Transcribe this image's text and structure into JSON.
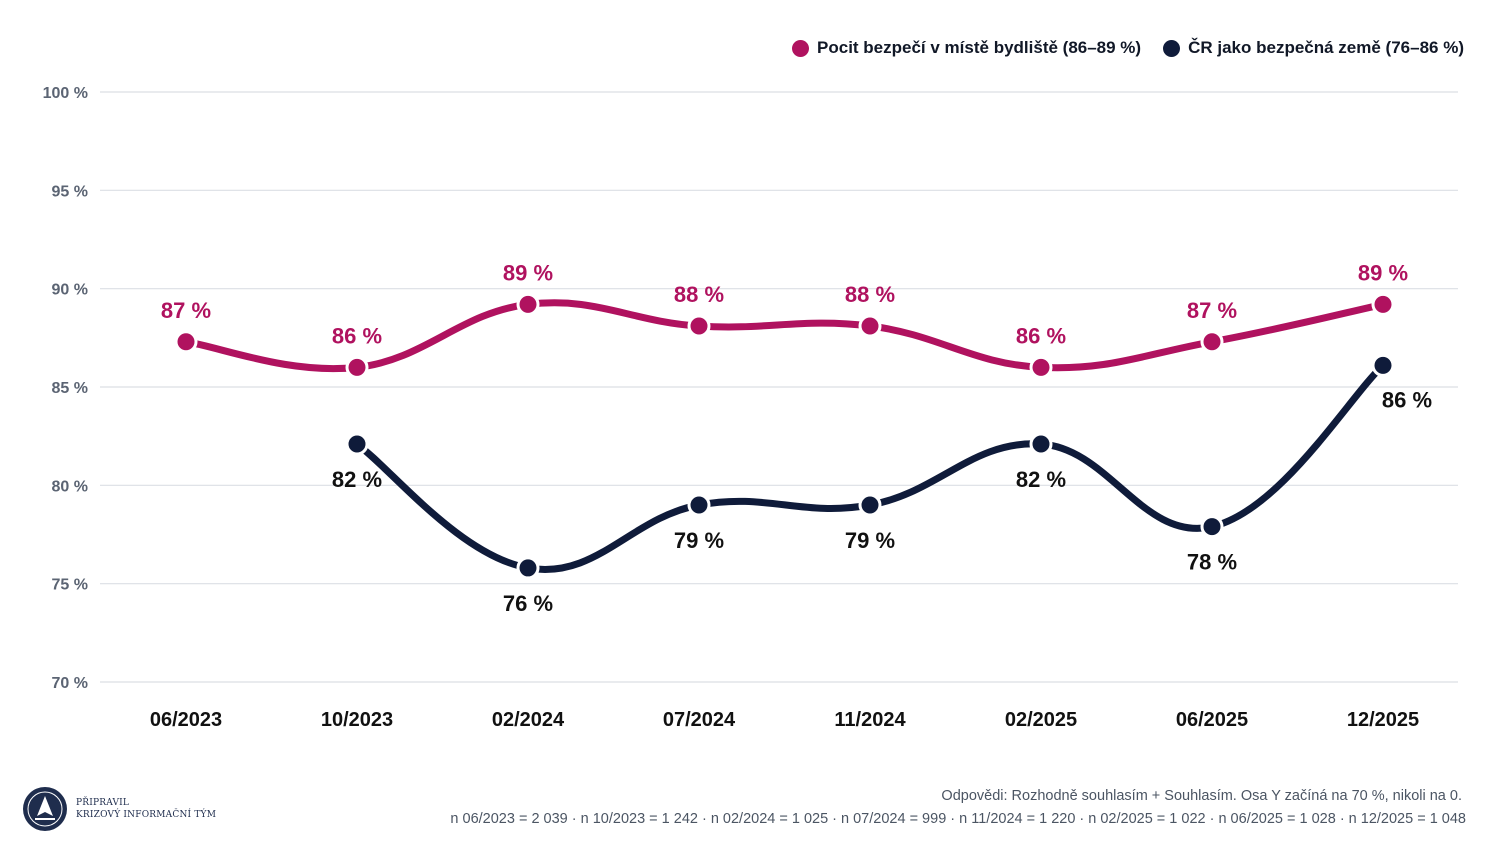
{
  "chart_data": {
    "type": "line",
    "categories": [
      "06/2023",
      "10/2023",
      "02/2024",
      "07/2024",
      "11/2024",
      "02/2025",
      "06/2025",
      "12/2025"
    ],
    "ylim": [
      70,
      100
    ],
    "yticks": [
      70,
      75,
      80,
      85,
      90,
      95,
      100
    ],
    "ytick_labels": [
      "70 %",
      "75 %",
      "80 %",
      "85 %",
      "90 %",
      "95 %",
      "100 %"
    ],
    "grid": true,
    "legend_position": "top-right",
    "series": [
      {
        "name": "Pocit bezpečí v místě bydliště (86–89 %)",
        "color": "#b0125f",
        "label_position": "above",
        "values": [
          87.3,
          86.0,
          89.2,
          88.1,
          88.1,
          86.0,
          87.3,
          89.2
        ],
        "labels": [
          "87 %",
          "86 %",
          "89 %",
          "88 %",
          "88 %",
          "86 %",
          "87 %",
          "89 %"
        ]
      },
      {
        "name": "ČR jako bezpečná země (76–86 %)",
        "color": "#0f1b3a",
        "label_position": "below",
        "values": [
          null,
          82.1,
          75.8,
          79.0,
          79.0,
          82.1,
          77.9,
          86.1
        ],
        "labels": [
          null,
          "82 %",
          "76 %",
          "79 %",
          "79 %",
          "82 %",
          "78 %",
          "86 %"
        ]
      }
    ]
  },
  "legend": {
    "items": [
      {
        "label": "Pocit bezpečí v místě bydliště (86–89 %)",
        "color": "#b0125f"
      },
      {
        "label": "ČR jako bezpečná země (76–86 %)",
        "color": "#0f1b3a"
      }
    ]
  },
  "footer": {
    "note": "Odpovědi: Rozhodně souhlasím + Souhlasím. Osa Y začíná na 70 %, nikoli na 0.",
    "samples": "n 06/2023 = 2 039 · n 10/2023 = 1 242 · n 02/2024 = 1 025 · n 07/2024 = 999 · n 11/2024 = 1 220 · n 02/2025 = 1 022 · n 06/2025 = 1 028 · n 12/2025 = 1 048"
  },
  "logo": {
    "line1": "PŘIPRAVIL",
    "line2": "KRIZOVÝ INFORMAČNÍ TÝM"
  }
}
